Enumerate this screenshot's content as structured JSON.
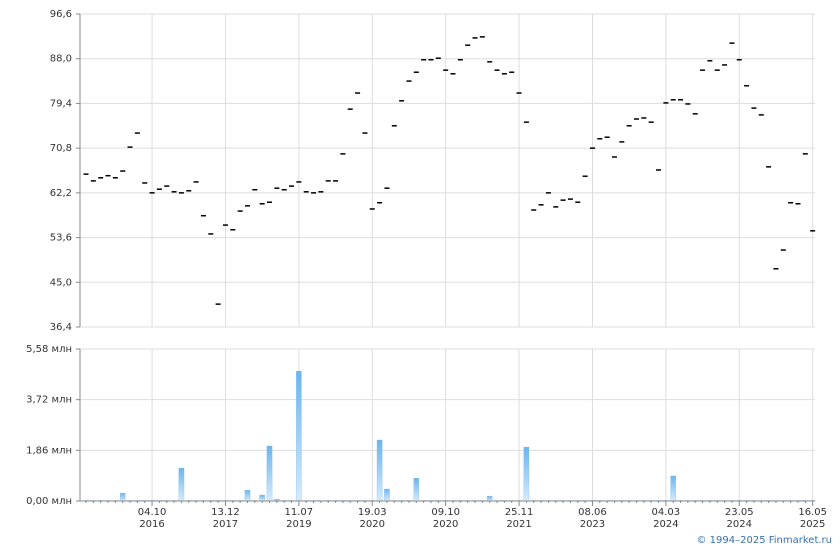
{
  "chart_data": [
    {
      "type": "dash",
      "color": "#000000",
      "values": [
        65.8,
        64.5,
        65.1,
        65.5,
        65.1,
        66.4,
        71.0,
        73.7,
        64.1,
        62.2,
        62.9,
        63.5,
        62.4,
        62.2,
        62.6,
        64.3,
        57.8,
        54.3,
        40.8,
        56.0,
        55.1,
        58.7,
        59.7,
        62.8,
        60.1,
        60.4,
        63.1,
        62.8,
        63.5,
        64.3,
        62.4,
        62.2,
        62.4,
        64.5,
        64.5,
        69.7,
        78.3,
        81.4,
        73.7,
        59.1,
        60.3,
        63.1,
        75.1,
        79.9,
        83.7,
        85.4,
        87.8,
        87.8,
        88.1,
        85.8,
        85.1,
        87.8,
        90.6,
        92.0,
        92.2,
        87.4,
        85.8,
        85.1,
        85.4,
        81.4,
        75.8,
        58.9,
        59.9,
        62.2,
        59.5,
        60.8,
        61.0,
        60.4,
        65.4,
        70.8,
        72.6,
        72.9,
        69.1,
        72.0,
        75.1,
        76.4,
        76.6,
        75.8,
        66.6,
        79.5,
        80.1,
        80.1,
        79.3,
        77.4,
        85.8,
        87.6,
        85.8,
        86.8,
        91.0,
        87.8,
        82.8,
        78.5,
        77.2,
        67.2,
        47.6,
        51.2,
        60.3,
        60.1,
        69.7,
        54.9
      ],
      "ylim": [
        36.4,
        96.6
      ],
      "yticks": [
        {
          "value": 96.6,
          "label": "96,6"
        },
        {
          "value": 88.0,
          "label": "88,0"
        },
        {
          "value": 79.4,
          "label": "79,4"
        },
        {
          "value": 70.8,
          "label": "70,8"
        },
        {
          "value": 62.2,
          "label": "62,2"
        },
        {
          "value": 53.6,
          "label": "53,6"
        },
        {
          "value": 45.0,
          "label": "45,0"
        },
        {
          "value": 36.4,
          "label": "36,4"
        }
      ],
      "grid": true
    },
    {
      "type": "bar",
      "color": "#7dbdf0",
      "categories": [
        null,
        null,
        null,
        null,
        null,
        null,
        null,
        null,
        null,
        "04.10\n2016",
        null,
        null,
        null,
        null,
        null,
        null,
        null,
        null,
        null,
        "13.12\n2017",
        null,
        null,
        null,
        null,
        null,
        null,
        null,
        null,
        null,
        "11.07\n2019",
        null,
        null,
        null,
        null,
        null,
        null,
        null,
        null,
        null,
        "19.03\n2020",
        null,
        null,
        null,
        null,
        null,
        null,
        null,
        null,
        null,
        "09.10\n2020",
        null,
        null,
        null,
        null,
        null,
        null,
        null,
        null,
        null,
        "25.11\n2021",
        null,
        null,
        null,
        null,
        null,
        null,
        null,
        null,
        null,
        "08.06\n2023",
        null,
        null,
        null,
        null,
        null,
        null,
        null,
        null,
        null,
        "04.03\n2024",
        null,
        null,
        null,
        null,
        null,
        null,
        null,
        null,
        null,
        "23.05\n2024",
        null,
        null,
        null,
        null,
        null,
        null,
        null,
        null,
        null,
        "16.05\n2025"
      ],
      "values": [
        0.02,
        0.02,
        0.02,
        0.02,
        0.02,
        0.29,
        0.02,
        0.02,
        0.02,
        0.02,
        0.02,
        0.02,
        0.02,
        1.21,
        0.02,
        0.02,
        0.02,
        0.02,
        0.02,
        0.02,
        0.02,
        0.02,
        0.4,
        0.02,
        0.22,
        2.02,
        0.07,
        0.02,
        0.02,
        4.77,
        0.02,
        0.02,
        0.02,
        0.02,
        0.02,
        0.02,
        0.02,
        0.02,
        0.02,
        0.02,
        2.24,
        0.44,
        0.02,
        0.02,
        0.02,
        0.84,
        0.02,
        0.02,
        0.02,
        0.02,
        0.02,
        0.02,
        0.02,
        0.02,
        0.02,
        0.18,
        0.02,
        0.02,
        0.02,
        0.02,
        1.98,
        0.02,
        0.02,
        0.02,
        0.02,
        0.02,
        0.02,
        0.02,
        0.02,
        0.02,
        0.02,
        0.02,
        0.02,
        0.02,
        0.02,
        0.02,
        0.02,
        0.02,
        0.02,
        0.02,
        0.92,
        0.02,
        0.02,
        0.02,
        0.02,
        0.02,
        0.02,
        0.02,
        0.02,
        0.02,
        0.02,
        0.02,
        0.02,
        0.02,
        0.02,
        0.02,
        0.02,
        0.02,
        0.02,
        0.02
      ],
      "ylim": [
        0,
        5.58
      ],
      "yticks": [
        {
          "value": 0,
          "label": "0,00 млн"
        },
        {
          "value": 1.86,
          "label": "1,86 млн"
        },
        {
          "value": 3.72,
          "label": "3,72 млн"
        },
        {
          "value": 5.58,
          "label": "5,58 млн"
        }
      ],
      "grid": true
    }
  ],
  "footer": "© 1994–2025 Finmarket.ru"
}
